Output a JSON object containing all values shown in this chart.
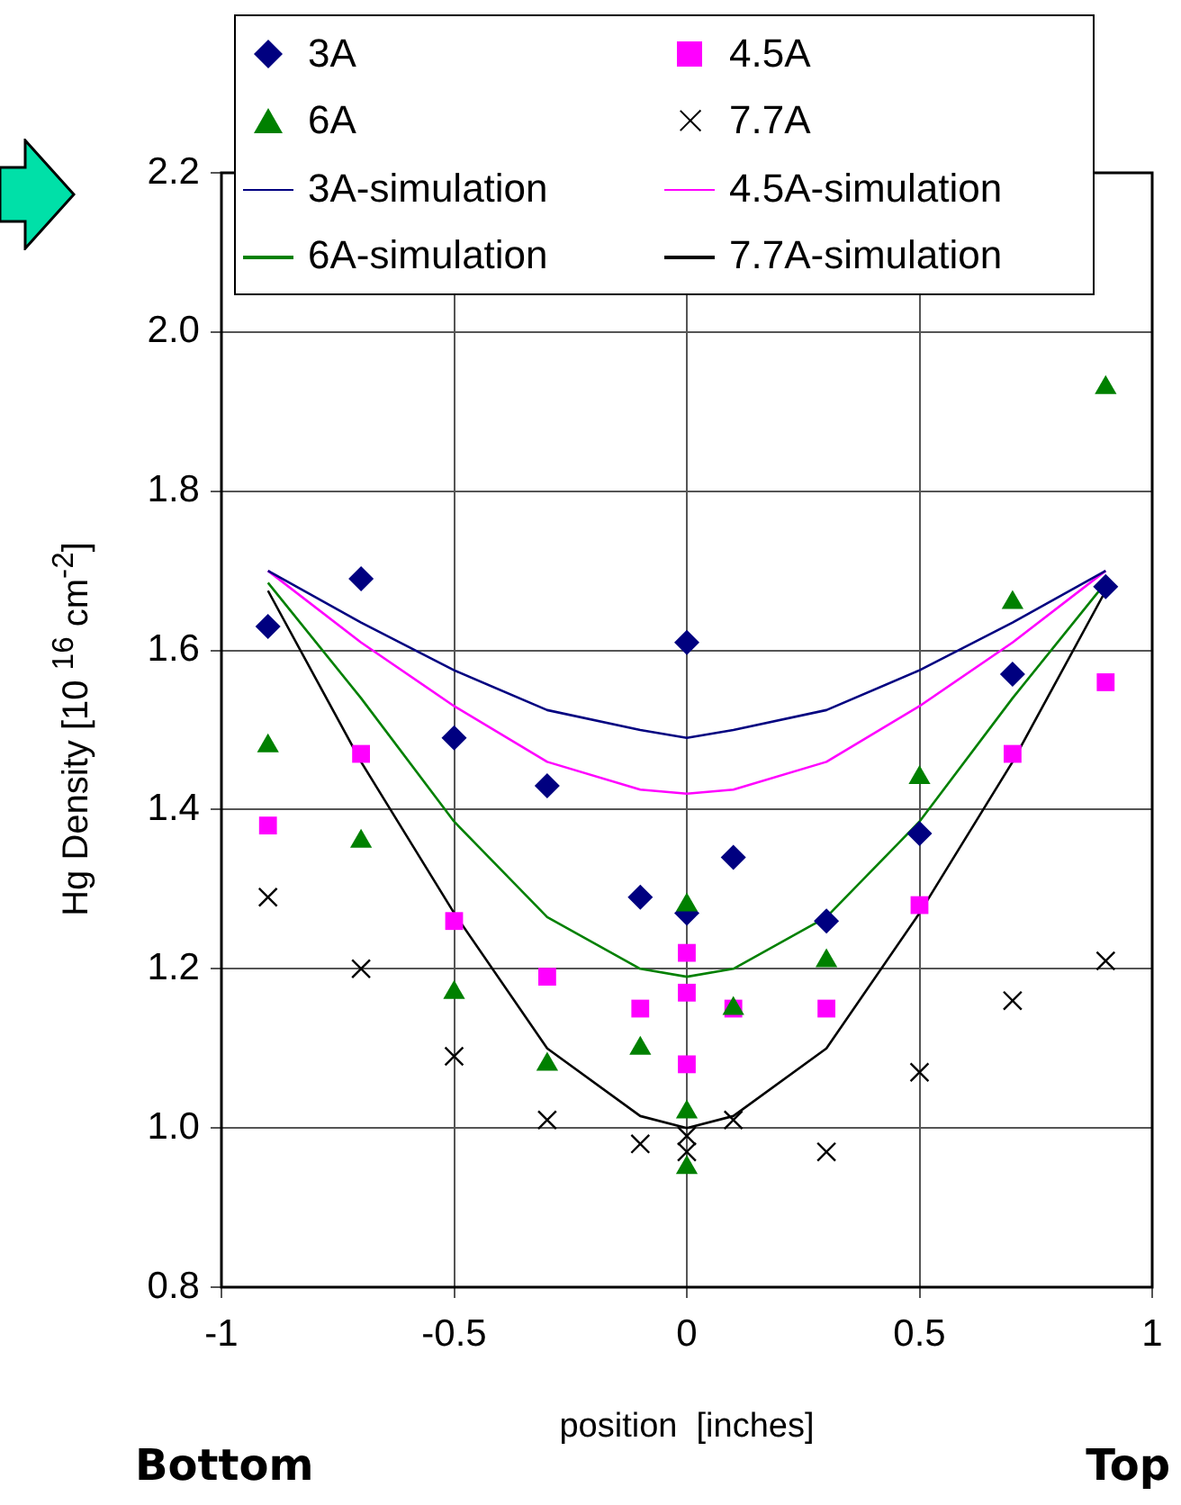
{
  "chart_data": {
    "type": "scatter",
    "xlabel": "position  [inches]",
    "ylabel": "Hg Density [10 $^{16}$ cm$^{-2}$]",
    "xlim": [
      -1,
      1
    ],
    "xticks": [
      -1,
      -0.5,
      0,
      0.5,
      1
    ],
    "ylim": [
      0.8,
      2.2
    ],
    "yticks": [
      0.8,
      {
        "value": 1,
        "label": "1.0"
      },
      1.2,
      1.4,
      1.6,
      1.8,
      {
        "value": 2,
        "label": "2.0"
      },
      2.2
    ],
    "grid": true,
    "legend": "top",
    "annotations": [
      "Bottom",
      "Top"
    ],
    "series": [
      {
        "name": "3A",
        "type": "scatter",
        "marker": "diamond",
        "color": "#000080",
        "x": [
          -0.9,
          -0.7,
          -0.5,
          -0.3,
          -0.1,
          0,
          0,
          0.1,
          0.3,
          0.5,
          0.7,
          0.9
        ],
        "values": [
          1.63,
          1.69,
          1.49,
          1.43,
          1.29,
          1.61,
          1.27,
          1.34,
          1.26,
          1.37,
          1.57,
          1.68
        ]
      },
      {
        "name": "4.5A",
        "type": "scatter",
        "marker": "square",
        "color": "#ff00ff",
        "x": [
          -0.9,
          -0.7,
          -0.5,
          -0.3,
          -0.1,
          0,
          0,
          0,
          0.1,
          0.3,
          0.5,
          0.7,
          0.9
        ],
        "values": [
          1.38,
          1.47,
          1.26,
          1.19,
          1.15,
          1.22,
          1.17,
          1.08,
          1.15,
          1.15,
          1.28,
          1.47,
          1.56
        ]
      },
      {
        "name": "6A",
        "type": "scatter",
        "marker": "triangle",
        "color": "#008000",
        "x": [
          -0.9,
          -0.7,
          -0.5,
          -0.3,
          -0.1,
          0,
          0,
          0,
          0.1,
          0.3,
          0.5,
          0.7,
          0.9
        ],
        "values": [
          1.48,
          1.36,
          1.17,
          1.08,
          1.1,
          1.28,
          1.02,
          0.95,
          1.15,
          1.21,
          1.44,
          1.66,
          1.93
        ]
      },
      {
        "name": "7.7A",
        "type": "scatter",
        "marker": "cross",
        "color": "#000000",
        "x": [
          -0.9,
          -0.7,
          -0.5,
          -0.3,
          -0.1,
          0,
          0,
          0.1,
          0.3,
          0.5,
          0.7,
          0.9
        ],
        "values": [
          1.29,
          1.2,
          1.09,
          1.01,
          0.98,
          0.99,
          0.97,
          1.01,
          0.97,
          1.07,
          1.16,
          1.21
        ]
      },
      {
        "name": "3A-simulation",
        "type": "line",
        "marker": "none",
        "color": "#000080",
        "x": [
          -0.9,
          -0.7,
          -0.5,
          -0.3,
          -0.1,
          0,
          0.1,
          0.3,
          0.5,
          0.7,
          0.9
        ],
        "values": [
          1.7,
          1.635,
          1.575,
          1.525,
          1.5,
          1.49,
          1.5,
          1.525,
          1.575,
          1.635,
          1.7
        ]
      },
      {
        "name": "4.5A-simulation",
        "type": "line",
        "marker": "none",
        "color": "#ff00ff",
        "x": [
          -0.9,
          -0.7,
          -0.5,
          -0.3,
          -0.1,
          0,
          0.1,
          0.3,
          0.5,
          0.7,
          0.9
        ],
        "values": [
          1.7,
          1.61,
          1.53,
          1.46,
          1.425,
          1.42,
          1.425,
          1.46,
          1.53,
          1.61,
          1.7
        ]
      },
      {
        "name": "6A-simulation",
        "type": "line",
        "marker": "none",
        "color": "#008000",
        "x": [
          -0.9,
          -0.7,
          -0.5,
          -0.3,
          -0.1,
          0,
          0.1,
          0.3,
          0.5,
          0.7,
          0.9
        ],
        "values": [
          1.685,
          1.54,
          1.385,
          1.265,
          1.2,
          1.19,
          1.2,
          1.265,
          1.385,
          1.54,
          1.685
        ]
      },
      {
        "name": "7.7A-simulation",
        "type": "line",
        "marker": "none",
        "color": "#000000",
        "x": [
          -0.9,
          -0.7,
          -0.5,
          -0.3,
          -0.1,
          0,
          0.1,
          0.3,
          0.5,
          0.7,
          0.9
        ],
        "values": [
          1.675,
          1.46,
          1.27,
          1.1,
          1.015,
          1.0,
          1.015,
          1.1,
          1.27,
          1.46,
          1.675
        ]
      }
    ]
  }
}
